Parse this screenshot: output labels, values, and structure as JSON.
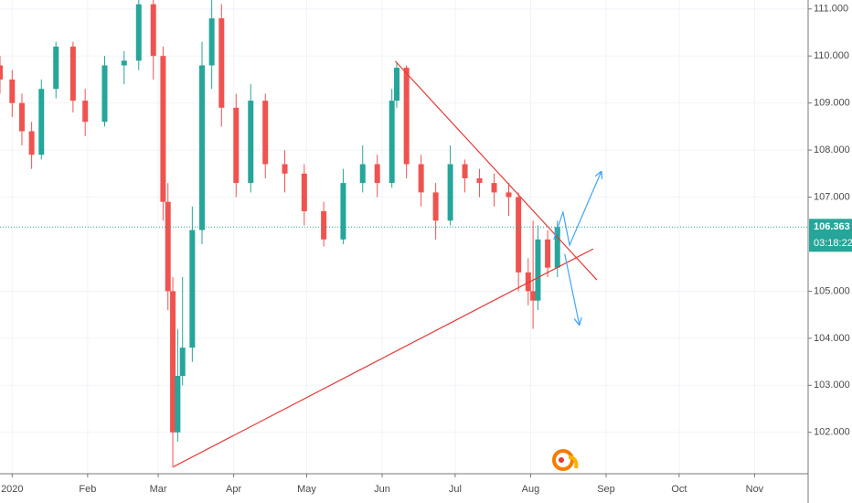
{
  "chart_data": {
    "type": "candlestick",
    "x": [
      -5,
      0,
      4,
      8,
      12,
      18,
      25,
      30,
      38,
      46,
      52,
      58,
      62,
      64,
      66,
      68,
      70,
      74,
      78,
      82,
      86,
      92,
      98,
      104,
      112,
      120,
      128,
      136,
      144,
      150,
      156,
      158,
      162,
      168,
      174,
      180,
      186,
      192,
      198,
      204,
      208,
      212,
      214,
      216,
      220,
      224
    ],
    "open": [
      109.8,
      109.5,
      109.0,
      108.4,
      107.9,
      109.3,
      110.2,
      109.05,
      108.6,
      109.8,
      109.9,
      111.1,
      110.0,
      106.9,
      105.0,
      102.0,
      103.2,
      103.8,
      106.3,
      109.8,
      110.8,
      108.9,
      107.3,
      109.05,
      107.7,
      107.5,
      106.7,
      106.1,
      107.3,
      107.7,
      107.3,
      109.05,
      109.75,
      107.7,
      107.1,
      106.5,
      107.7,
      107.4,
      107.3,
      107.1,
      107.0,
      105.4,
      105.0,
      104.8,
      106.1,
      105.5
    ],
    "high": [
      110.0,
      109.7,
      109.2,
      108.6,
      109.5,
      110.3,
      110.3,
      109.3,
      110.0,
      110.1,
      111.3,
      111.2,
      110.2,
      107.3,
      105.3,
      104.2,
      105.3,
      106.8,
      110.3,
      111.3,
      111.1,
      109.2,
      109.4,
      109.2,
      108.0,
      107.7,
      106.9,
      107.6,
      108.1,
      107.9,
      109.3,
      109.85,
      109.8,
      107.9,
      107.3,
      108.1,
      107.8,
      107.6,
      107.5,
      107.3,
      107.1,
      105.7,
      106.5,
      106.4,
      106.3,
      106.5
    ],
    "low": [
      109.2,
      108.7,
      108.1,
      107.6,
      107.8,
      109.1,
      108.8,
      108.3,
      108.5,
      109.4,
      109.7,
      109.5,
      106.5,
      104.6,
      101.25,
      101.8,
      103.0,
      103.5,
      106.0,
      109.3,
      108.5,
      107.0,
      107.1,
      107.4,
      107.1,
      106.4,
      105.95,
      106.0,
      107.1,
      107.0,
      107.2,
      108.9,
      107.4,
      106.8,
      106.1,
      106.4,
      107.1,
      107.0,
      106.8,
      106.6,
      105.0,
      104.7,
      104.2,
      104.6,
      105.3,
      105.3
    ],
    "close": [
      109.5,
      109.0,
      108.4,
      107.9,
      109.3,
      110.2,
      109.05,
      108.6,
      109.8,
      109.9,
      111.1,
      110.0,
      106.9,
      105.0,
      102.0,
      103.2,
      103.8,
      106.3,
      109.8,
      110.8,
      108.9,
      107.3,
      109.05,
      107.7,
      107.5,
      106.7,
      106.1,
      107.3,
      107.7,
      107.3,
      109.05,
      109.75,
      107.7,
      107.1,
      106.5,
      107.7,
      107.4,
      107.3,
      107.1,
      107.0,
      105.4,
      105.0,
      104.8,
      106.1,
      105.5,
      106.363
    ],
    "up_color": "#26a69a",
    "down_color": "#ef5350",
    "xlim": [
      -5,
      327
    ],
    "ylim": [
      101.12,
      111.19
    ],
    "xticks": [
      {
        "value": 0,
        "label": "2020"
      },
      {
        "value": 31,
        "label": "Feb"
      },
      {
        "value": 60,
        "label": "Mar"
      },
      {
        "value": 91,
        "label": "Apr"
      },
      {
        "value": 121,
        "label": "May"
      },
      {
        "value": 152,
        "label": "Jun"
      },
      {
        "value": 182,
        "label": "Jul"
      },
      {
        "value": 213,
        "label": "Aug"
      },
      {
        "value": 244,
        "label": "Sep"
      },
      {
        "value": 274,
        "label": "Oct"
      },
      {
        "value": 305,
        "label": "Nov"
      }
    ],
    "yticks": [
      {
        "value": 102,
        "label": "102.000"
      },
      {
        "value": 103,
        "label": "103.000"
      },
      {
        "value": 104,
        "label": "104.000"
      },
      {
        "value": 105,
        "label": "105.000"
      },
      {
        "value": 107,
        "label": "107.000"
      },
      {
        "value": 108,
        "label": "108.000"
      },
      {
        "value": 109,
        "label": "109.000"
      },
      {
        "value": 110,
        "label": "110.000"
      },
      {
        "value": 111,
        "label": "111.000"
      }
    ],
    "grid": true,
    "current_price": 106.363,
    "current_price_color": "#26a69a",
    "countdown": "03:18:22",
    "trend_lines": [
      {
        "x": [
          66.3,
          238.7
        ],
        "y": [
          101.27,
          105.9
        ],
        "color": "#e53935"
      },
      {
        "x": [
          157.4,
          240.2
        ],
        "y": [
          109.89,
          105.24
        ],
        "color": "#e53935"
      }
    ],
    "arrows": [
      {
        "x": [
          222.5,
          226.3,
          229.0,
          242.0
        ],
        "y": [
          106.1,
          106.68,
          105.98,
          107.54
        ],
        "color": "#42a5f5"
      },
      {
        "x": [
          227.0,
          233.0
        ],
        "y": [
          105.79,
          104.29
        ],
        "color": "#42a5f5"
      }
    ]
  }
}
